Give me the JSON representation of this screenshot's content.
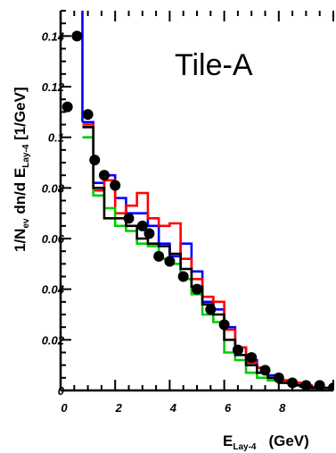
{
  "chart_data": {
    "type": "line",
    "panel_label": "Tile-A",
    "xlabel": {
      "main": "E",
      "sub": "Lay-4",
      "unit": "(GeV)"
    },
    "ylabel": {
      "prefix": "1/N",
      "prefix_sub": "ev",
      "mid": " dn/d E",
      "mid_sub": "Lay-4",
      "unit": " [1/GeV]"
    },
    "xlim": [
      0,
      10
    ],
    "ylim": [
      0,
      0.15
    ],
    "xticks": [
      0,
      2,
      4,
      6,
      8
    ],
    "yticks": [
      0,
      0.02,
      0.04,
      0.06,
      0.08,
      0.1,
      0.12,
      0.14
    ],
    "ytick_labels": [
      "0",
      "0.02",
      "0.04",
      "0.06",
      "0.08",
      "0.1",
      "0.12",
      "0.14"
    ],
    "grid": false,
    "data_points": {
      "name": "",
      "color": "#000000",
      "x": [
        0.25,
        0.6,
        1.0,
        1.25,
        1.6,
        2.0,
        2.5,
        3.0,
        3.25,
        3.6,
        4.0,
        4.5,
        5.0,
        5.5,
        6.0,
        6.5,
        7.0,
        7.5,
        8.0,
        8.5,
        9.0,
        9.5,
        10.0
      ],
      "y": [
        0.112,
        0.14,
        0.109,
        0.091,
        0.085,
        0.081,
        0.068,
        0.065,
        0.062,
        0.053,
        0.051,
        0.045,
        0.04,
        0.032,
        0.026,
        0.016,
        0.013,
        0.008,
        0.005,
        0.003,
        0.002,
        0.002,
        0.001
      ]
    },
    "series": [
      {
        "name": "",
        "color": "#0000ff",
        "edges": [
          0.8,
          1.2,
          1.6,
          2.0,
          2.4,
          2.8,
          3.2,
          3.6,
          4.0,
          4.4,
          4.8,
          5.2,
          5.6,
          6.0,
          6.4,
          6.8,
          7.2,
          7.6,
          8.0,
          8.4,
          8.8,
          9.2,
          9.6,
          10.0
        ],
        "values": [
          0.106,
          0.082,
          0.085,
          0.076,
          0.07,
          0.07,
          0.065,
          0.058,
          0.053,
          0.058,
          0.047,
          0.035,
          0.032,
          0.025,
          0.017,
          0.012,
          0.009,
          0.006,
          0.004,
          0.003,
          0.002,
          0.0015,
          0.001
        ],
        "spike": {
          "x": 0.8,
          "y_top": 0.15
        }
      },
      {
        "name": "",
        "color": "#ff0000",
        "edges": [
          0.8,
          1.2,
          1.6,
          2.0,
          2.4,
          2.8,
          3.2,
          3.6,
          4.0,
          4.4,
          4.8,
          5.2,
          5.6,
          6.0,
          6.4,
          6.8,
          7.2,
          7.6,
          8.0,
          8.4,
          8.8,
          9.2,
          9.6,
          10.0
        ],
        "values": [
          0.105,
          0.079,
          0.083,
          0.07,
          0.073,
          0.078,
          0.068,
          0.065,
          0.066,
          0.052,
          0.044,
          0.037,
          0.035,
          0.024,
          0.017,
          0.011,
          0.009,
          0.005,
          0.004,
          0.003,
          0.002,
          0.0015,
          0.001
        ]
      },
      {
        "name": "",
        "color": "#00cc00",
        "edges": [
          0.8,
          1.2,
          1.6,
          2.0,
          2.4,
          2.8,
          3.2,
          3.6,
          4.0,
          4.4,
          4.8,
          5.2,
          5.6,
          6.0,
          6.4,
          6.8,
          7.2,
          7.6,
          8.0,
          8.4,
          8.8,
          9.2,
          9.6,
          10.0
        ],
        "values": [
          0.1,
          0.077,
          0.072,
          0.065,
          0.063,
          0.058,
          0.057,
          0.052,
          0.05,
          0.044,
          0.038,
          0.03,
          0.027,
          0.015,
          0.012,
          0.007,
          0.005,
          0.004,
          0.003,
          0.002,
          0.0015,
          0.001,
          0.001
        ]
      },
      {
        "name": "",
        "color": "#000000",
        "edges": [
          0.8,
          1.2,
          1.6,
          2.0,
          2.4,
          2.8,
          3.2,
          3.6,
          4.0,
          4.4,
          4.8,
          5.2,
          5.6,
          6.0,
          6.4,
          6.8,
          7.2,
          7.6,
          8.0,
          8.4,
          8.8,
          9.2,
          9.6,
          10.0
        ],
        "values": [
          0.104,
          0.08,
          0.068,
          0.068,
          0.065,
          0.06,
          0.058,
          0.057,
          0.054,
          0.048,
          0.041,
          0.034,
          0.03,
          0.02,
          0.014,
          0.01,
          0.007,
          0.005,
          0.003,
          0.002,
          0.0015,
          0.001,
          0.001
        ]
      }
    ]
  }
}
